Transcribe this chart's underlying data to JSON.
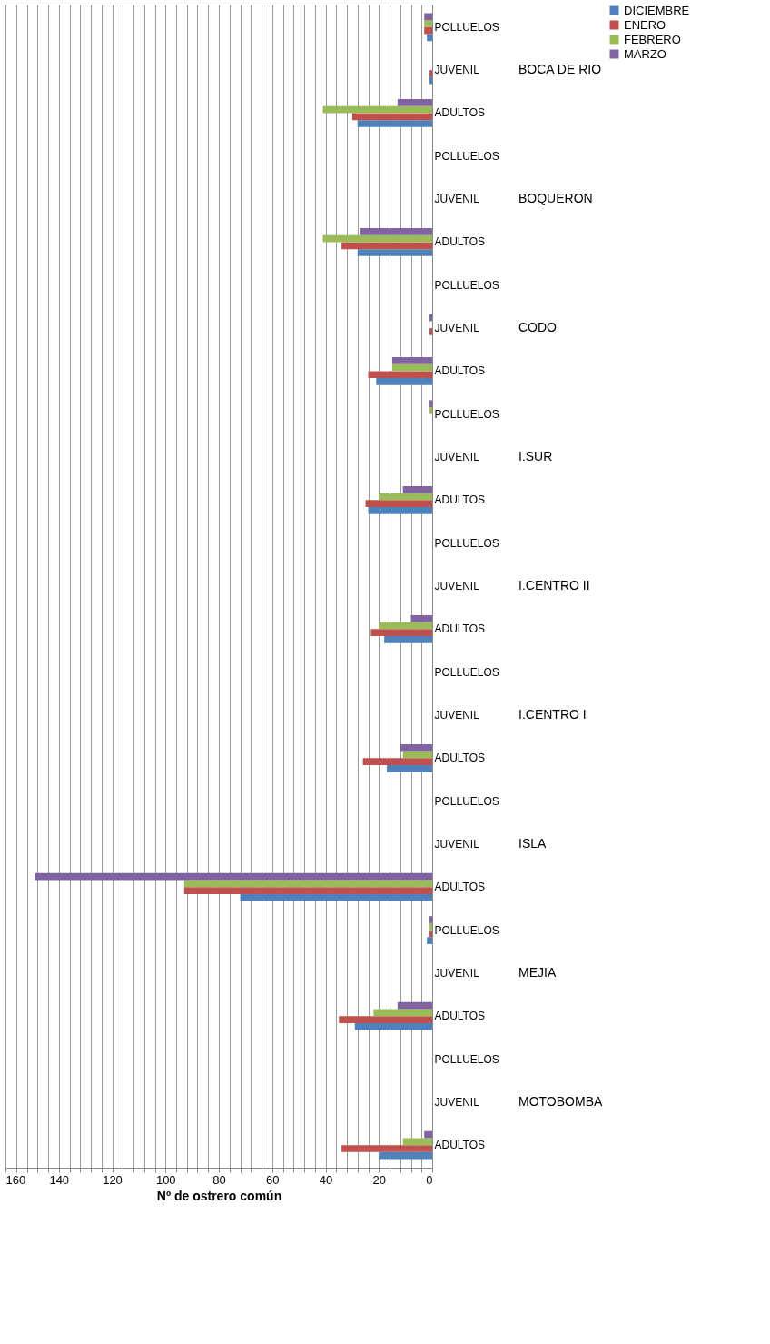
{
  "chart_data": {
    "type": "bar",
    "orientation": "horizontal",
    "xlabel": "Nº de ostrero común",
    "categories": [
      "POLLUELOS",
      "JUVENIL",
      "ADULTOS",
      "POLLUELOS",
      "JUVENIL",
      "ADULTOS",
      "POLLUELOS",
      "JUVENIL",
      "ADULTOS",
      "POLLUELOS",
      "JUVENIL",
      "ADULTOS",
      "POLLUELOS",
      "JUVENIL",
      "ADULTOS",
      "POLLUELOS",
      "JUVENIL",
      "ADULTOS",
      "POLLUELOS",
      "JUVENIL",
      "ADULTOS",
      "POLLUELOS",
      "JUVENIL",
      "ADULTOS",
      "POLLUELOS",
      "JUVENIL",
      "ADULTOS"
    ],
    "annotations": [
      "BOCA DE RIO",
      "BOQUERON",
      "CODO",
      "I.SUR",
      "I.CENTRO II",
      "I.CENTRO I",
      "ISLA",
      "MEJIA",
      "MOTOBOMBA"
    ],
    "series": [
      {
        "name": "DICIEMBRE",
        "color": "#4f81bd",
        "values": [
          2,
          1,
          28,
          0,
          0,
          28,
          0,
          0,
          21,
          0,
          0,
          24,
          0,
          0,
          18,
          0,
          0,
          17,
          0,
          0,
          72,
          2,
          0,
          29,
          0,
          0,
          20
        ]
      },
      {
        "name": "ENERO",
        "color": "#c0504d",
        "values": [
          3,
          1,
          30,
          0,
          0,
          34,
          0,
          1,
          24,
          0,
          0,
          25,
          0,
          0,
          23,
          0,
          0,
          26,
          0,
          0,
          93,
          1,
          0,
          35,
          0,
          0,
          34
        ]
      },
      {
        "name": "FEBRERO",
        "color": "#9bbb59",
        "values": [
          3,
          0,
          41,
          0,
          0,
          41,
          0,
          0,
          15,
          1,
          0,
          20,
          0,
          0,
          20,
          0,
          0,
          11,
          0,
          0,
          93,
          1,
          0,
          22,
          0,
          0,
          11
        ]
      },
      {
        "name": "MARZO",
        "color": "#8064a2",
        "values": [
          3,
          0,
          13,
          0,
          0,
          27,
          0,
          1,
          15,
          1,
          0,
          11,
          0,
          0,
          8,
          0,
          0,
          12,
          0,
          0,
          149,
          1,
          0,
          13,
          0,
          0,
          3
        ]
      }
    ],
    "xlim": [
      160,
      0
    ],
    "xticks": [
      0,
      {
        "value": 4,
        "label": null
      },
      {
        "value": 8,
        "label": null
      },
      {
        "value": 12,
        "label": null
      },
      {
        "value": 16,
        "label": null
      },
      20,
      {
        "value": 24,
        "label": null
      },
      {
        "value": 28,
        "label": null
      },
      {
        "value": 32,
        "label": null
      },
      {
        "value": 36,
        "label": null
      },
      40,
      {
        "value": 44,
        "label": null
      },
      {
        "value": 48,
        "label": null
      },
      {
        "value": 52,
        "label": null
      },
      {
        "value": 56,
        "label": null
      },
      60,
      {
        "value": 64,
        "label": null
      },
      {
        "value": 68,
        "label": null
      },
      {
        "value": 72,
        "label": null
      },
      {
        "value": 76,
        "label": null
      },
      80,
      {
        "value": 84,
        "label": null
      },
      {
        "value": 88,
        "label": null
      },
      {
        "value": 92,
        "label": null
      },
      {
        "value": 96,
        "label": null
      },
      100,
      {
        "value": 104,
        "label": null
      },
      {
        "value": 108,
        "label": null
      },
      {
        "value": 112,
        "label": null
      },
      {
        "value": 116,
        "label": null
      },
      120,
      {
        "value": 124,
        "label": null
      },
      {
        "value": 128,
        "label": null
      },
      {
        "value": 132,
        "label": null
      },
      {
        "value": 136,
        "label": null
      },
      140,
      {
        "value": 144,
        "label": null
      },
      {
        "value": 148,
        "label": null
      },
      {
        "value": 152,
        "label": null
      },
      {
        "value": 156,
        "label": null
      },
      160
    ],
    "grid": "x",
    "legend": "right"
  }
}
